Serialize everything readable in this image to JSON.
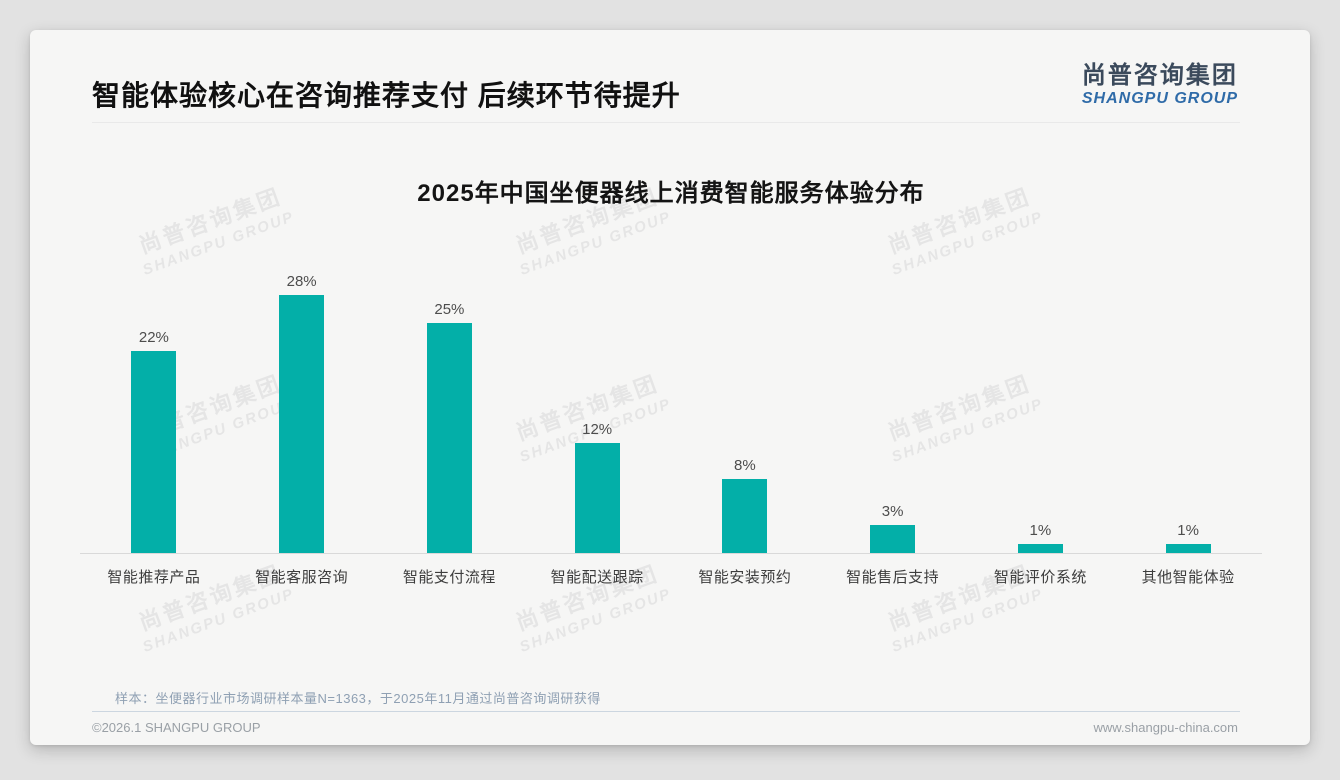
{
  "header": {
    "title": "智能体验核心在咨询推荐支付 后续环节待提升",
    "logo_cn": "尚普咨询集团",
    "logo_en": "SHANGPU GROUP"
  },
  "chart_data": {
    "type": "bar",
    "title": "2025年中国坐便器线上消费智能服务体验分布",
    "categories": [
      "智能推荐产品",
      "智能客服咨询",
      "智能支付流程",
      "智能配送跟踪",
      "智能安装预约",
      "智能售后支持",
      "智能评价系统",
      "其他智能体验"
    ],
    "values": [
      22,
      28,
      25,
      12,
      8,
      3,
      1,
      1
    ],
    "value_labels": [
      "22%",
      "28%",
      "25%",
      "12%",
      "8%",
      "3%",
      "1%",
      "1%"
    ],
    "unit": "%",
    "xlabel": "",
    "ylabel": "",
    "ylim": [
      0,
      30
    ],
    "grid": false,
    "legend": false,
    "bar_color": "#03afa8"
  },
  "watermark": {
    "cn": "尚普咨询集团",
    "en": "SHANGPU GROUP"
  },
  "footnote": "样本：坐便器行业市场调研样本量N=1363，于2025年11月通过尚普咨询调研获得",
  "footer": {
    "copyright": "©2026.1 SHANGPU GROUP",
    "url": "www.shangpu-china.com"
  },
  "colors": {
    "bar": "#03afa8",
    "logo_blue": "#2f6ba8",
    "logo_dark": "#3b4a5c",
    "slide_bg": "#f6f6f5"
  }
}
